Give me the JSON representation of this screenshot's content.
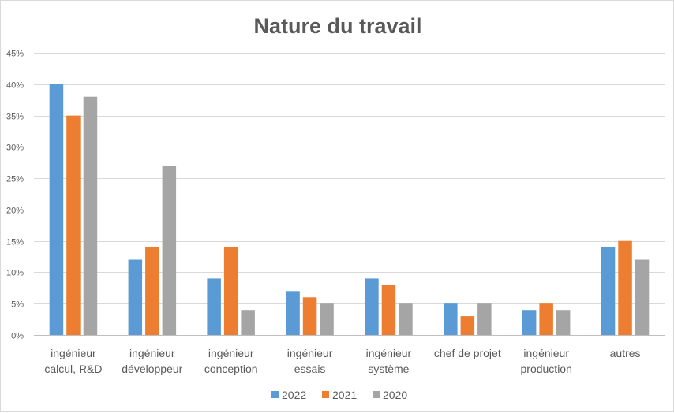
{
  "chart_data": {
    "type": "bar",
    "title": "Nature du travail",
    "xlabel": "",
    "ylabel": "",
    "categories": [
      [
        "ingénieur",
        "calcul, R&D"
      ],
      [
        "ingénieur",
        "développeur"
      ],
      [
        "ingénieur",
        "conception"
      ],
      [
        "ingénieur",
        "essais"
      ],
      [
        "ingénieur",
        "système"
      ],
      [
        "chef de projet"
      ],
      [
        "ingénieur",
        "production"
      ],
      [
        "autres"
      ]
    ],
    "series": [
      {
        "name": "2022",
        "color": "#5b9bd5",
        "values": [
          40,
          12,
          9,
          7,
          9,
          5,
          4,
          14
        ]
      },
      {
        "name": "2021",
        "color": "#ed7d31",
        "values": [
          35,
          14,
          14,
          6,
          8,
          3,
          5,
          15
        ]
      },
      {
        "name": "2020",
        "color": "#a5a5a5",
        "values": [
          38,
          27,
          4,
          5,
          5,
          5,
          4,
          12
        ]
      }
    ],
    "ylim": [
      0,
      45
    ],
    "yticks": [
      0,
      5,
      10,
      15,
      20,
      25,
      30,
      35,
      40,
      45
    ],
    "ytick_labels": [
      "0%",
      "5%",
      "10%",
      "15%",
      "20%",
      "25%",
      "30%",
      "35%",
      "40%",
      "45%"
    ],
    "grid": true,
    "legend_position": "bottom"
  }
}
